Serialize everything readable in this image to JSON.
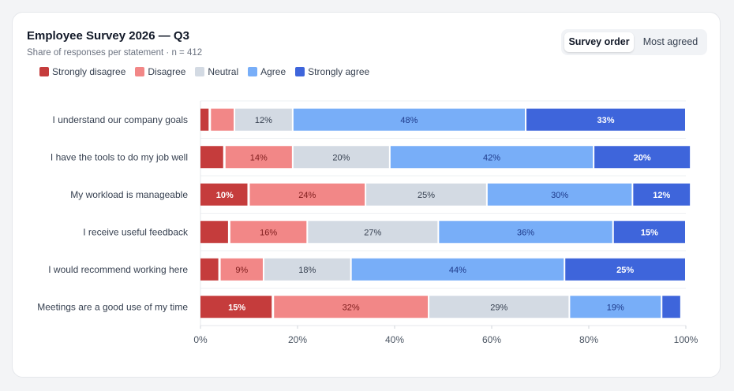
{
  "header": {
    "title": "Employee Survey 2026 — Q3",
    "subtitle": "Share of responses per statement · n = 412"
  },
  "toggle": {
    "options": [
      "Survey order",
      "Most agreed"
    ],
    "active": "Survey order"
  },
  "legend": [
    {
      "label": "Strongly disagree",
      "color": "#c53c3c"
    },
    {
      "label": "Disagree",
      "color": "#f28787"
    },
    {
      "label": "Neutral",
      "color": "#d3dae3"
    },
    {
      "label": "Agree",
      "color": "#78aef8"
    },
    {
      "label": "Strongly agree",
      "color": "#3e65db"
    }
  ],
  "chart_data": {
    "type": "bar",
    "orientation": "horizontal",
    "stacked": true,
    "categories": [
      "I understand our company goals",
      "I have the tools to do my job well",
      "My workload is manageable",
      "I receive useful feedback",
      "I would recommend working here",
      "Meetings are a good use of my time"
    ],
    "series": [
      {
        "name": "Strongly disagree",
        "values": [
          2,
          5,
          10,
          6,
          4,
          15
        ]
      },
      {
        "name": "Disagree",
        "values": [
          5,
          14,
          24,
          16,
          9,
          32
        ]
      },
      {
        "name": "Neutral",
        "values": [
          12,
          20,
          25,
          27,
          18,
          29
        ]
      },
      {
        "name": "Agree",
        "values": [
          48,
          42,
          30,
          36,
          44,
          19
        ]
      },
      {
        "name": "Strongly agree",
        "values": [
          33,
          20,
          12,
          15,
          25,
          4
        ]
      }
    ],
    "xlim": [
      0,
      100
    ],
    "xticks": [
      "0%",
      "20%",
      "40%",
      "60%",
      "80%",
      "100%"
    ],
    "legend_position": "top-left",
    "label_min_percent": 8
  }
}
